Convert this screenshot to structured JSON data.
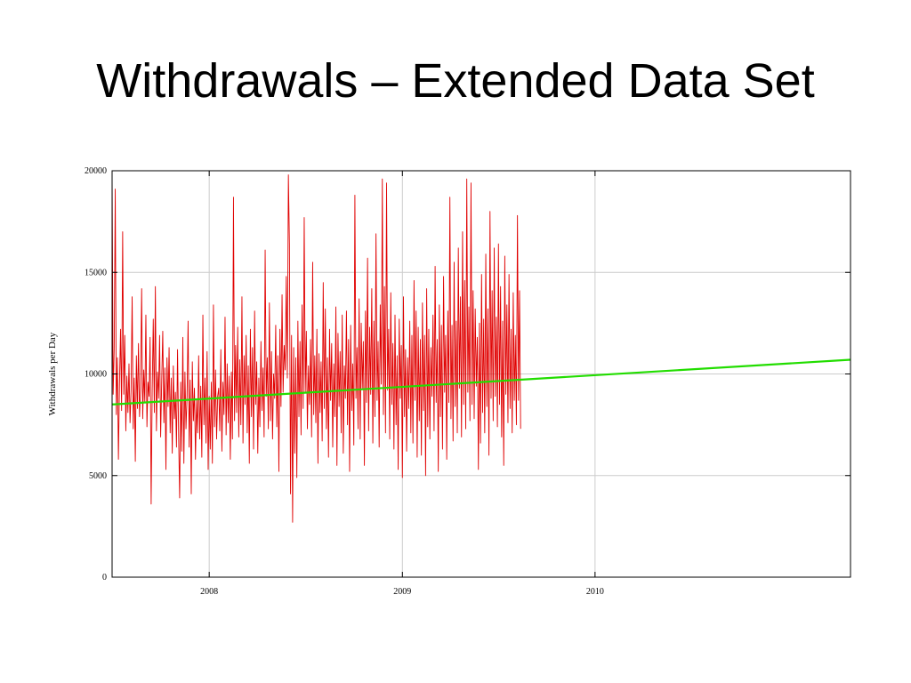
{
  "slide": {
    "title": "Withdrawals – Extended Data Set"
  },
  "colors": {
    "series": "#e00000",
    "trend": "#22dd00",
    "grid": "#cccccc"
  },
  "chart_data": {
    "type": "line",
    "title": "",
    "xlabel": "",
    "ylabel": "Withdrawals per Day",
    "x_range": [
      "2007-07-01",
      "2011-04-30"
    ],
    "ylim": [
      0,
      20000
    ],
    "y_ticks": [
      0,
      5000,
      10000,
      15000,
      20000
    ],
    "x_ticks": [
      {
        "label": "2008",
        "date": "2008-01-01"
      },
      {
        "label": "2009",
        "date": "2009-01-01"
      },
      {
        "label": "2010",
        "date": "2010-01-01"
      }
    ],
    "grid": true,
    "series": [
      {
        "name": "",
        "style": "line",
        "start_date": "2007-07-01",
        "step_days": 2,
        "values": [
          19900,
          9000,
          11200,
          19100,
          8000,
          10800,
          5800,
          9500,
          12200,
          8200,
          17000,
          9000,
          11900,
          7200,
          9900,
          8100,
          10500,
          7600,
          9200,
          13800,
          7300,
          9800,
          5700,
          10900,
          8300,
          11500,
          7900,
          9300,
          14200,
          7800,
          10200,
          8600,
          12900,
          7400,
          9600,
          8900,
          11800,
          3600,
          9200,
          12700,
          8100,
          14300,
          7200,
          10100,
          8800,
          11900,
          6900,
          9700,
          12100,
          7600,
          10300,
          5300,
          10800,
          8400,
          11300,
          7100,
          9800,
          6100,
          10400,
          7800,
          9100,
          6400,
          11200,
          7000,
          3900,
          9600,
          6200,
          11800,
          5600,
          10100,
          7300,
          8900,
          12600,
          6400,
          9700,
          4100,
          10600,
          7700,
          9300,
          5800,
          8700,
          7100,
          10900,
          6800,
          9400,
          5900,
          12900,
          7500,
          9800,
          6600,
          11100,
          5300,
          8900,
          6300,
          9600,
          5600,
          13400,
          7400,
          10200,
          6800,
          8900,
          9300,
          7200,
          11200,
          6200,
          9600,
          8000,
          12800,
          7000,
          10500,
          7600,
          9900,
          5800,
          10100,
          6800,
          18700,
          7700,
          11400,
          8100,
          12300,
          6900,
          10700,
          7500,
          13800,
          6600,
          10900,
          8500,
          11900,
          7100,
          10400,
          5600,
          12200,
          7900,
          11300,
          6300,
          13100,
          8500,
          10600,
          6100,
          9800,
          7400,
          11600,
          8200,
          10300,
          6900,
          16100,
          8900,
          10800,
          7300,
          13500,
          7700,
          11100,
          6800,
          10000,
          8800,
          12400,
          7400,
          10900,
          5200,
          12200,
          8400,
          13900,
          9100,
          11400,
          10200,
          14800,
          9800,
          19800,
          16400,
          4100,
          11900,
          2700,
          11300,
          6100,
          10800,
          4900,
          12600,
          7900,
          11600,
          7000,
          13400,
          8300,
          17700,
          9100,
          12100,
          7300,
          10400,
          8500,
          11700,
          6900,
          15500,
          8000,
          10900,
          7600,
          12200,
          5600,
          11000,
          8100,
          10600,
          6700,
          14500,
          8300,
          13200,
          7300,
          10800,
          5900,
          12200,
          8700,
          11500,
          6400,
          10500,
          7900,
          13300,
          5500,
          12000,
          8400,
          11100,
          7100,
          12900,
          6100,
          10400,
          8800,
          13100,
          7500,
          11700,
          5200,
          12400,
          8200,
          10500,
          6500,
          18800,
          8800,
          11300,
          7300,
          13700,
          6800,
          12500,
          9300,
          11600,
          5500,
          13100,
          8600,
          15700,
          7200,
          12300,
          9000,
          14200,
          6600,
          12600,
          7900,
          16900,
          8700,
          11600,
          6400,
          13400,
          9500,
          19600,
          8000,
          14300,
          7100,
          19400,
          9200,
          12200,
          6800,
          14000,
          8500,
          11500,
          6300,
          12900,
          7500,
          10900,
          5300,
          12700,
          8800,
          11400,
          4900,
          13800,
          7900,
          11200,
          6200,
          10800,
          8300,
          12600,
          7100,
          11900,
          6600,
          14600,
          8700,
          13100,
          5900,
          12300,
          7700,
          11700,
          6000,
          13500,
          8200,
          11900,
          5000,
          14200,
          7400,
          12200,
          6800,
          11300,
          8900,
          12900,
          7200,
          15300,
          8600,
          11700,
          5200,
          13400,
          7900,
          12400,
          6300,
          14800,
          9100,
          11900,
          5800,
          13100,
          8600,
          18700,
          7800,
          12400,
          6700,
          15500,
          8400,
          12600,
          7100,
          16200,
          9300,
          13800,
          6900,
          17000,
          8500,
          14600,
          7300,
          19600,
          9100,
          13300,
          7700,
          19400,
          8500,
          14100,
          7800,
          13200,
          9400,
          11800,
          5300,
          12500,
          6600,
          14900,
          8100,
          12700,
          7100,
          15900,
          8400,
          13200,
          6000,
          18000,
          8800,
          14100,
          7700,
          16200,
          8900,
          12800,
          7400,
          16400,
          8500,
          14300,
          6900,
          12600,
          5500,
          15800,
          9000,
          13400,
          7600,
          14900,
          8300,
          12200,
          7100,
          14000,
          8700,
          11900,
          7500,
          17800,
          8700,
          14100,
          7300
        ]
      },
      {
        "name": "",
        "style": "trend",
        "x": [
          "2007-07-01",
          "2011-04-30"
        ],
        "y": [
          8500,
          10700
        ]
      }
    ]
  }
}
